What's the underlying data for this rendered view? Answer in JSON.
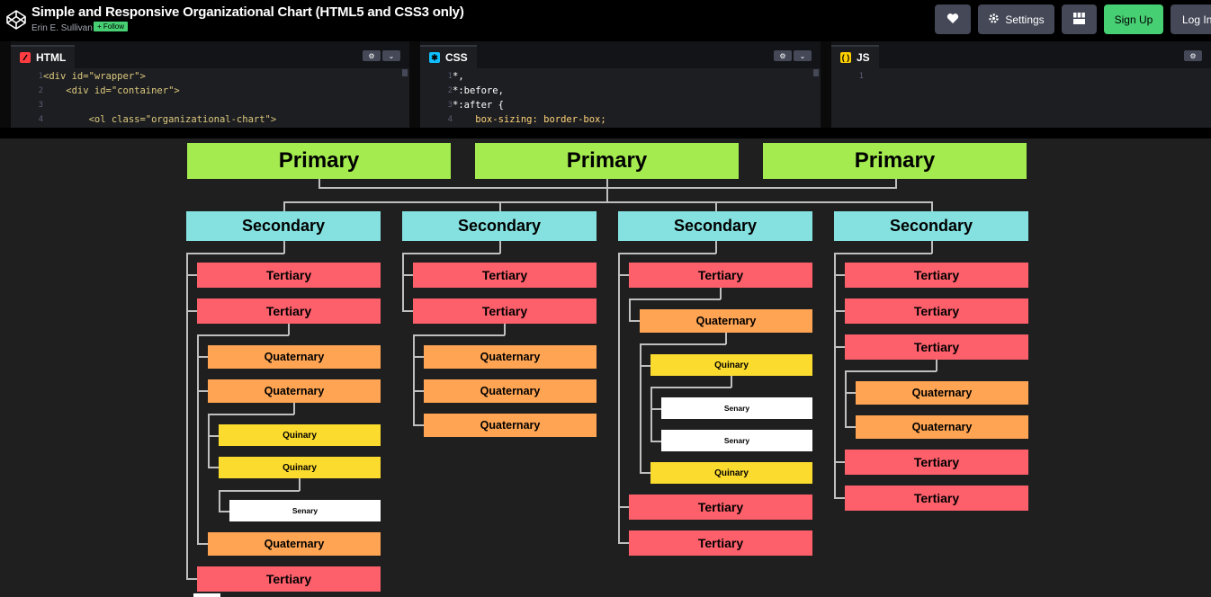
{
  "header": {
    "title": "Simple and Responsive Organizational Chart (HTML5 and CSS3 only)",
    "author": "Erin E. Sullivan",
    "follow_label": "+ Follow",
    "buttons": {
      "heart_icon": "heart-icon",
      "settings_label": "Settings",
      "grid_icon": "layout-icon",
      "signup_label": "Sign Up",
      "login_label": "Log In"
    }
  },
  "editors": {
    "html": {
      "tab_label": "HTML",
      "lines": [
        "1",
        "2",
        "3",
        "4"
      ],
      "code": [
        "<div id=\"wrapper\">",
        "    <div id=\"container\">",
        "",
        "        <ol class=\"organizational-chart\">"
      ]
    },
    "css": {
      "tab_label": "CSS",
      "lines": [
        "1",
        "2",
        "3",
        "4"
      ],
      "code": [
        "*,",
        "*:before,",
        "*:after {",
        "    box-sizing: border-box;"
      ]
    },
    "js": {
      "tab_label": "JS",
      "lines": [
        "1"
      ]
    }
  },
  "chart": {
    "primary": [
      "Primary",
      "Primary",
      "Primary"
    ],
    "secondary": [
      "Secondary",
      "Secondary",
      "Secondary",
      "Secondary"
    ],
    "tertiary": "Tertiary",
    "quaternary": "Quaternary",
    "quinary": "Quinary",
    "senary": "Senary"
  },
  "colors": {
    "primary": "#a3eb4f",
    "secondary": "#84e1e0",
    "tertiary": "#fd5f6b",
    "quaternary": "#fea453",
    "quinary": "#fcdb2f",
    "senary": "#ffffff",
    "accent_green": "#47cf73"
  }
}
